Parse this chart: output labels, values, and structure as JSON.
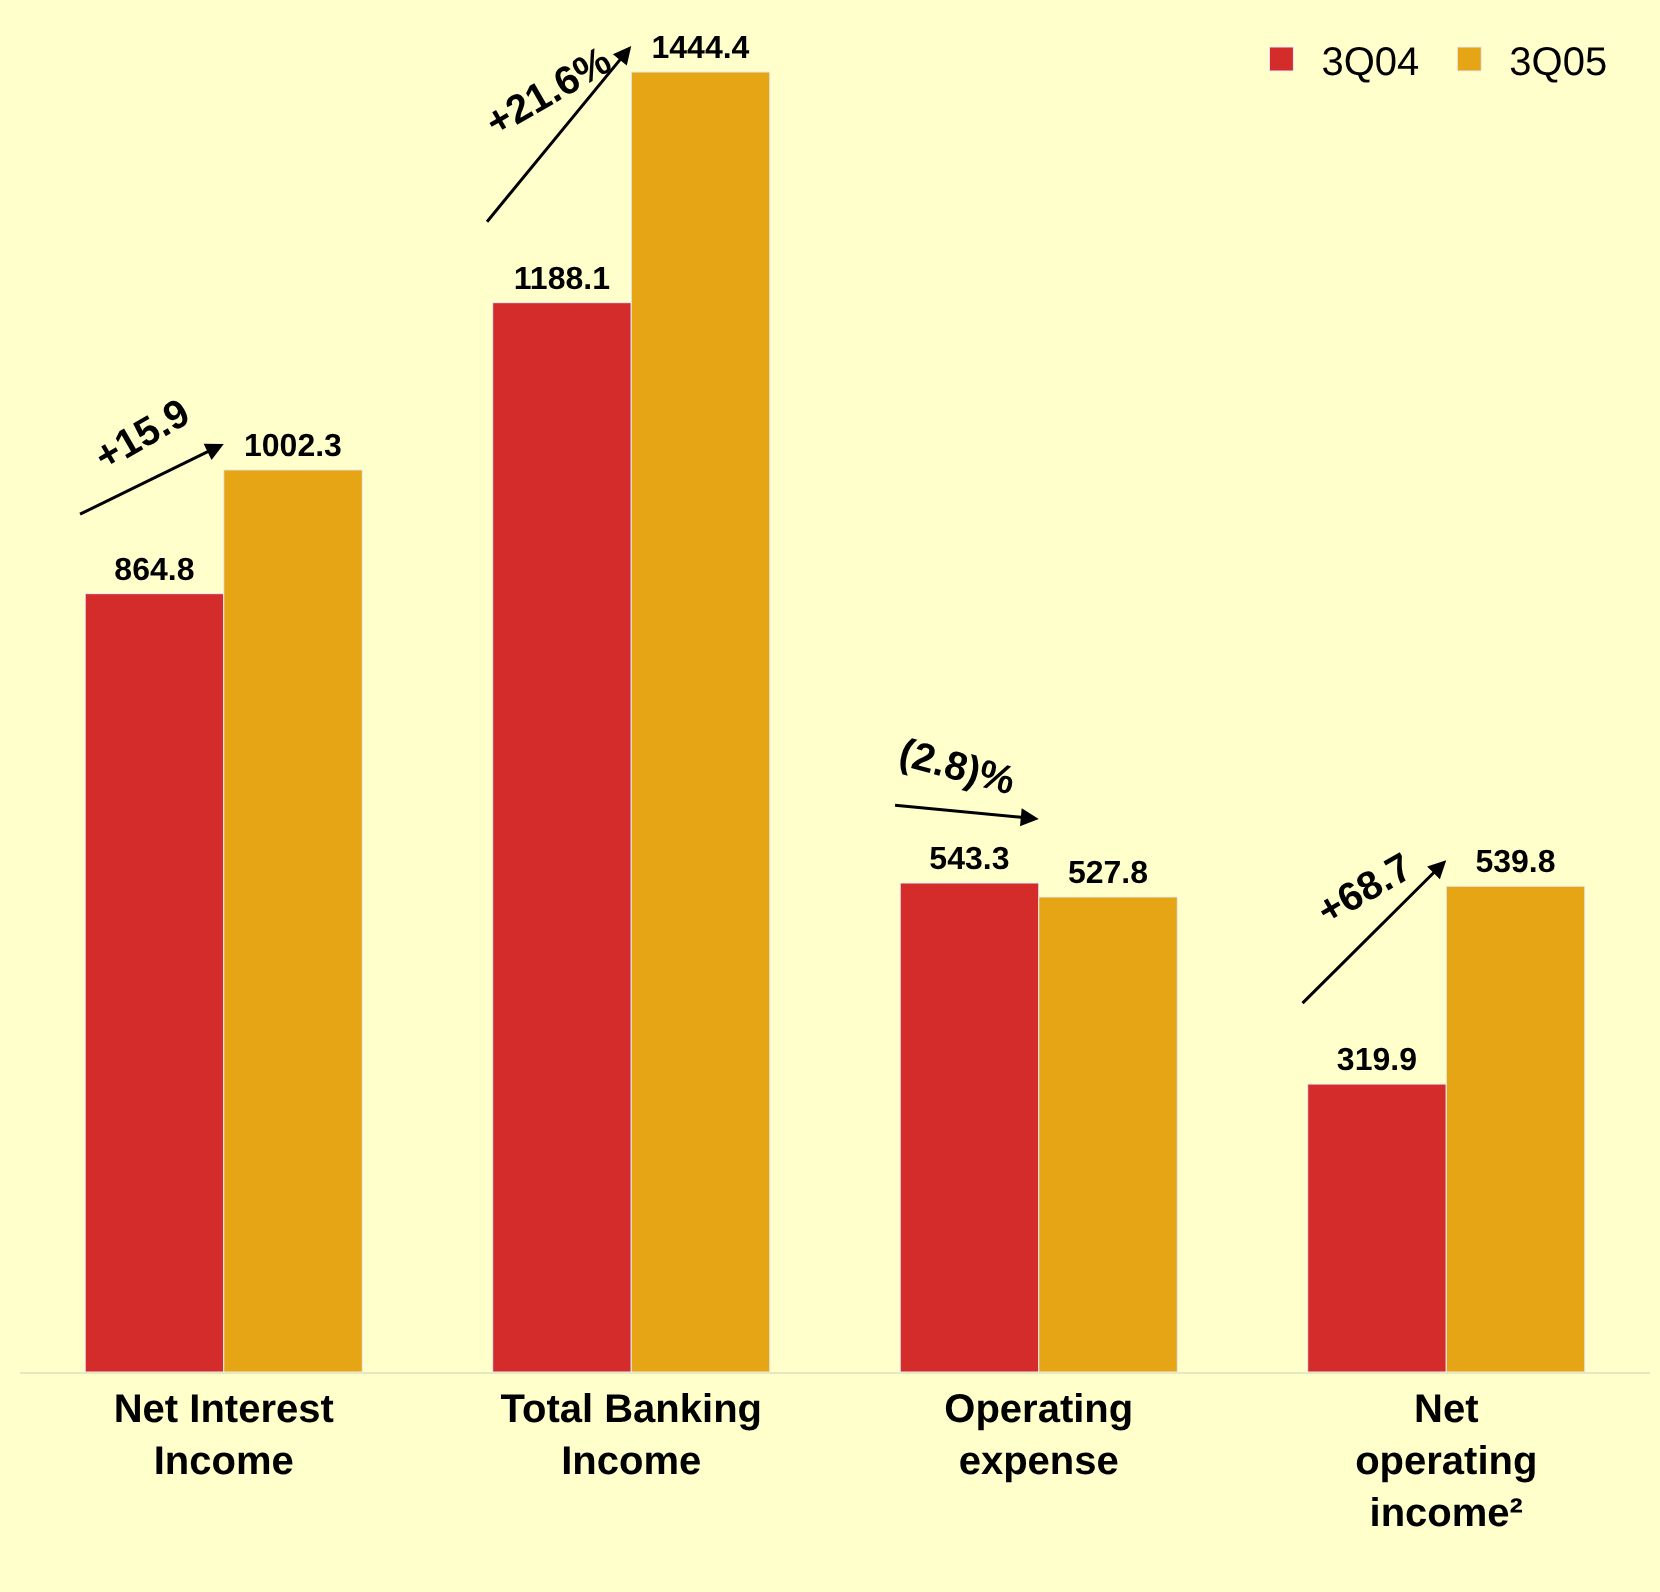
{
  "chart_data": {
    "type": "bar",
    "categories": [
      "Net Interest\nIncome",
      "Total Banking\nIncome",
      "Operating\nexpense",
      "Net\noperating\nincome²"
    ],
    "series": [
      {
        "name": "3Q04",
        "color": "#d42b2b",
        "values": [
          864.8,
          1188.1,
          543.3,
          319.9
        ]
      },
      {
        "name": "3Q05",
        "color": "#e6a514",
        "values": [
          1002.3,
          1444.4,
          527.8,
          539.8
        ]
      }
    ],
    "data_labels": true,
    "legend": "top right",
    "annotations": [
      "+15.9",
      "+21.6%",
      "(2.8)%",
      "+68.7"
    ]
  }
}
